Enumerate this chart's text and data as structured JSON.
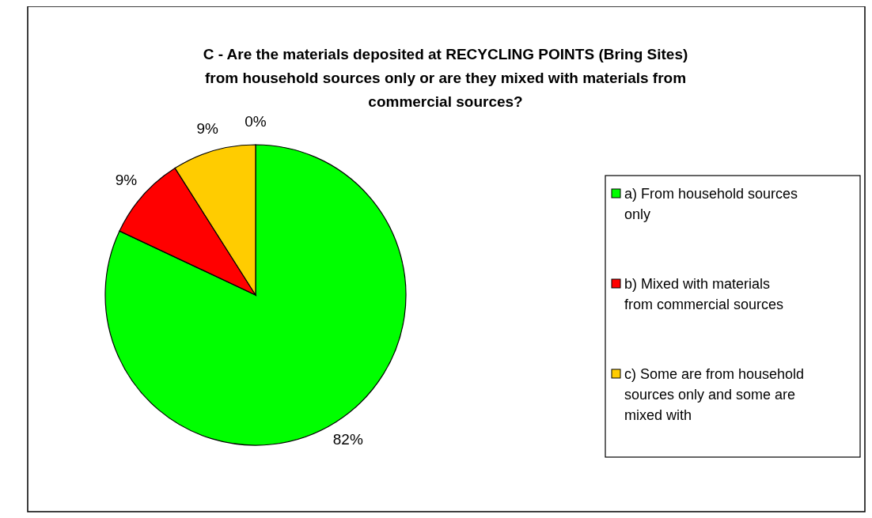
{
  "chart_data": {
    "type": "pie",
    "title": "C - Are the materials deposited at RECYCLING POINTS (Bring Sites) from household sources only or are they mixed with materials from commercial sources?",
    "categories": [
      "a) From household sources only",
      "b) Mixed with materials from commercial sources",
      "c) Some are from household sources only and some are mixed with",
      null
    ],
    "values": [
      82,
      9,
      9,
      0
    ],
    "colors": [
      "#00ff00",
      "#ff0000",
      "#ffcc00",
      null
    ],
    "value_labels": [
      "82%",
      "9%",
      "9%",
      "0%"
    ],
    "legend": "right"
  }
}
